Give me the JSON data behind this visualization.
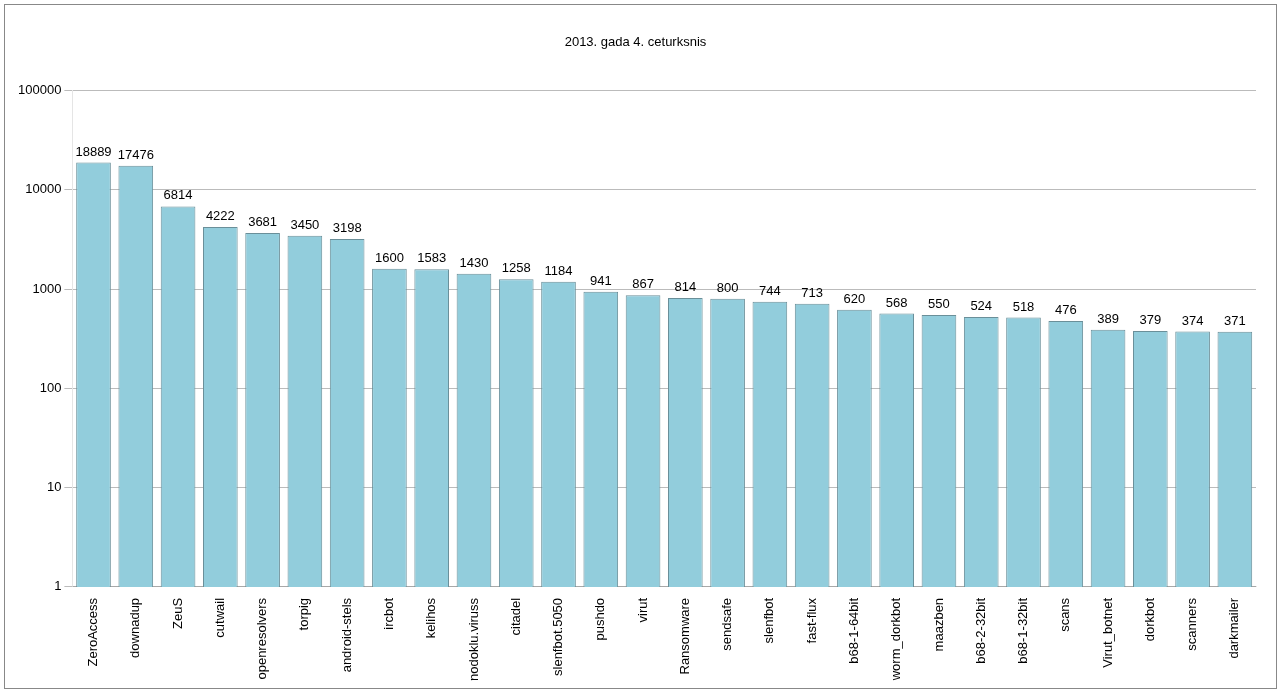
{
  "chart_data": {
    "type": "bar",
    "title": "2013. gada 4. ceturksnis",
    "categories": [
      "ZeroAccess",
      "downadup",
      "ZeuS",
      "cutwail",
      "openresolvers",
      "torpig",
      "android-stels",
      "ircbot",
      "kelihos",
      "nodoklu.viruss",
      "citadel",
      "slenfbot.5050",
      "pushdo",
      "virut",
      "Ransomware",
      "sendsafe",
      "slenfbot",
      "fast-flux",
      "b68-1-64bit",
      "worm_dorkbot",
      "maazben",
      "b68-2-32bit",
      "b68-1-32bit",
      "scans",
      "Virut_botnet",
      "dorkbot",
      "scanners",
      "darkmailer"
    ],
    "values": [
      18889,
      17476,
      6814,
      4222,
      3681,
      3450,
      3198,
      1600,
      1583,
      1430,
      1258,
      1184,
      941,
      867,
      814,
      800,
      744,
      713,
      620,
      568,
      550,
      524,
      518,
      476,
      389,
      379,
      374,
      371
    ],
    "color": "#92cddc",
    "log": true,
    "ylim": [
      1,
      100000
    ],
    "yticks": [
      1,
      10,
      100,
      1000,
      10000,
      100000
    ],
    "grid": "y",
    "data_labels": true
  }
}
